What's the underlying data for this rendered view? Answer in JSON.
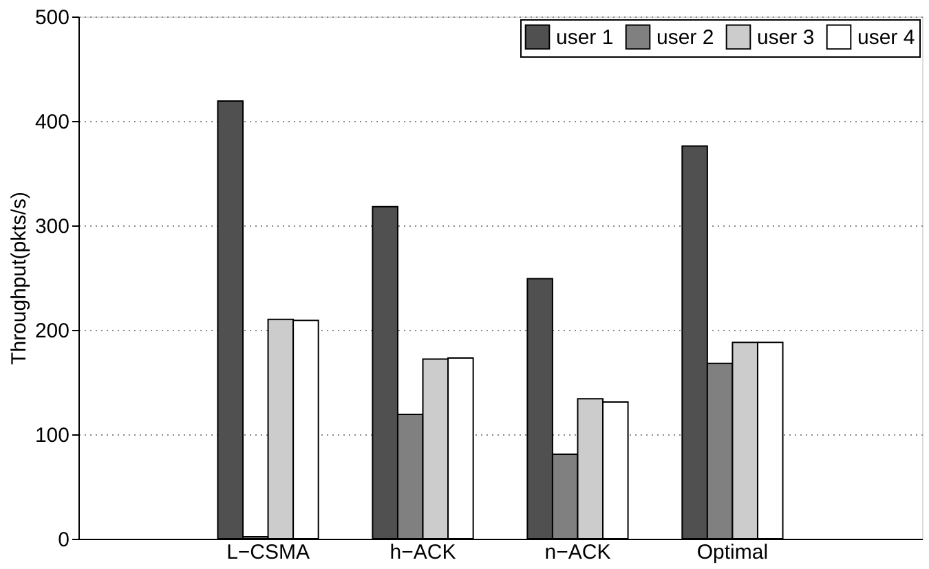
{
  "chart_data": {
    "type": "bar",
    "ylabel": "Throughput(pkts/s)",
    "categories": [
      "L−CSMA",
      "h−ACK",
      "n−ACK",
      "Optimal"
    ],
    "series": [
      {
        "name": "user 1",
        "color": "#505050",
        "values": [
          419,
          318,
          249,
          376
        ]
      },
      {
        "name": "user 2",
        "color": "#808080",
        "values": [
          2,
          119,
          81,
          168
        ]
      },
      {
        "name": "user 3",
        "color": "#cccccc",
        "values": [
          210,
          172,
          134,
          188
        ]
      },
      {
        "name": "user 4",
        "color": "#ffffff",
        "values": [
          209,
          173,
          131,
          188
        ]
      }
    ],
    "ylim": [
      0,
      500
    ],
    "yticks": [
      0,
      100,
      200,
      300,
      400,
      500
    ],
    "grid": "y",
    "legend": "top right"
  }
}
